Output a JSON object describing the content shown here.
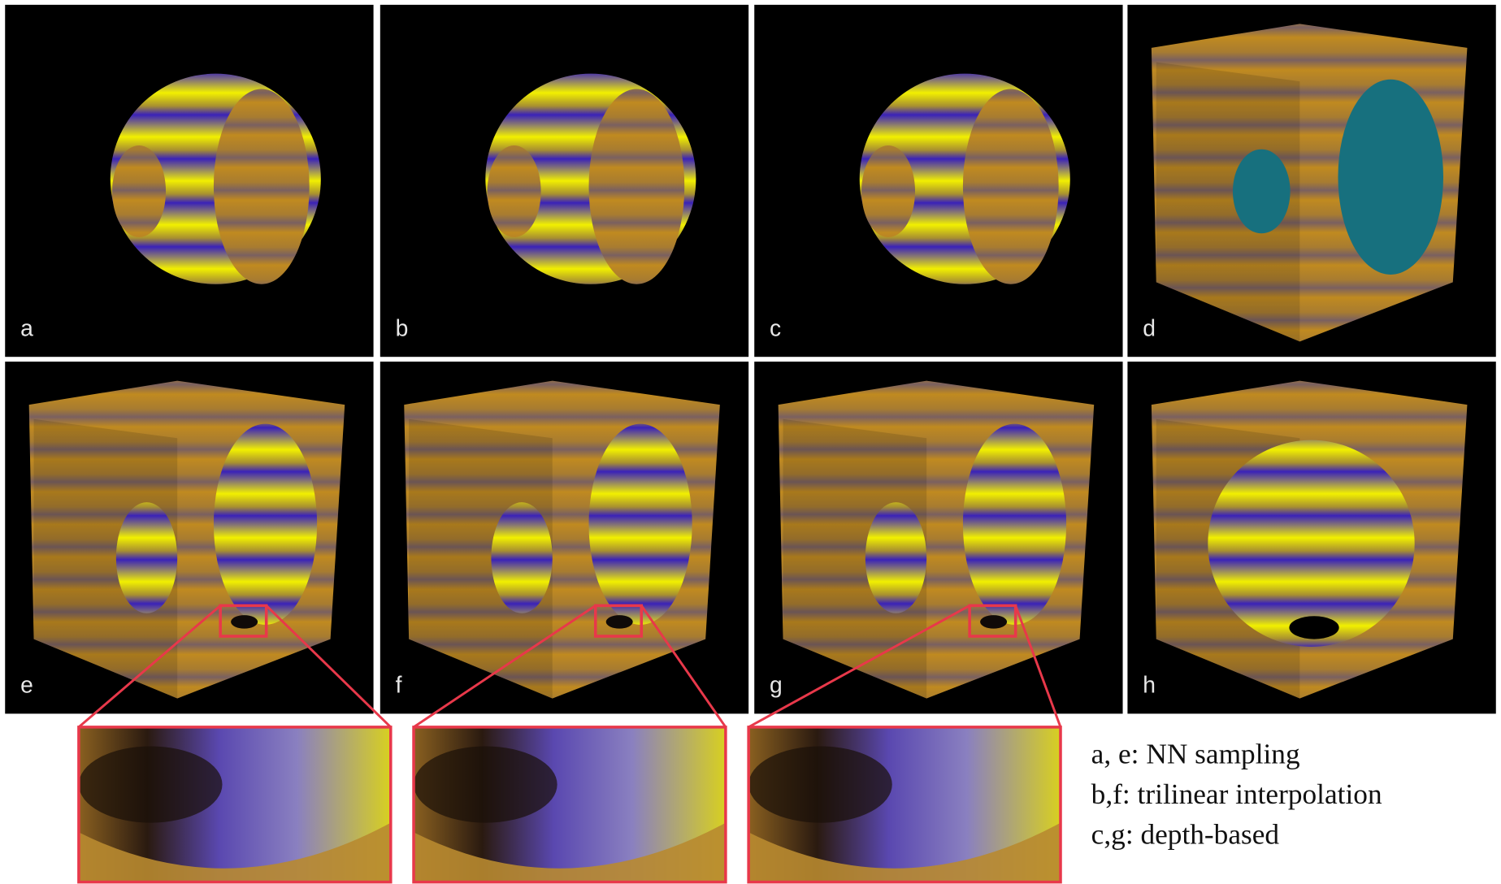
{
  "panels": [
    {
      "label": "a"
    },
    {
      "label": "b"
    },
    {
      "label": "c"
    },
    {
      "label": "d"
    },
    {
      "label": "e"
    },
    {
      "label": "f"
    },
    {
      "label": "g"
    },
    {
      "label": "h"
    }
  ],
  "legend": [
    "a, e: NN sampling",
    "b,f: trilinear interpolation",
    "c,g: depth-based"
  ]
}
